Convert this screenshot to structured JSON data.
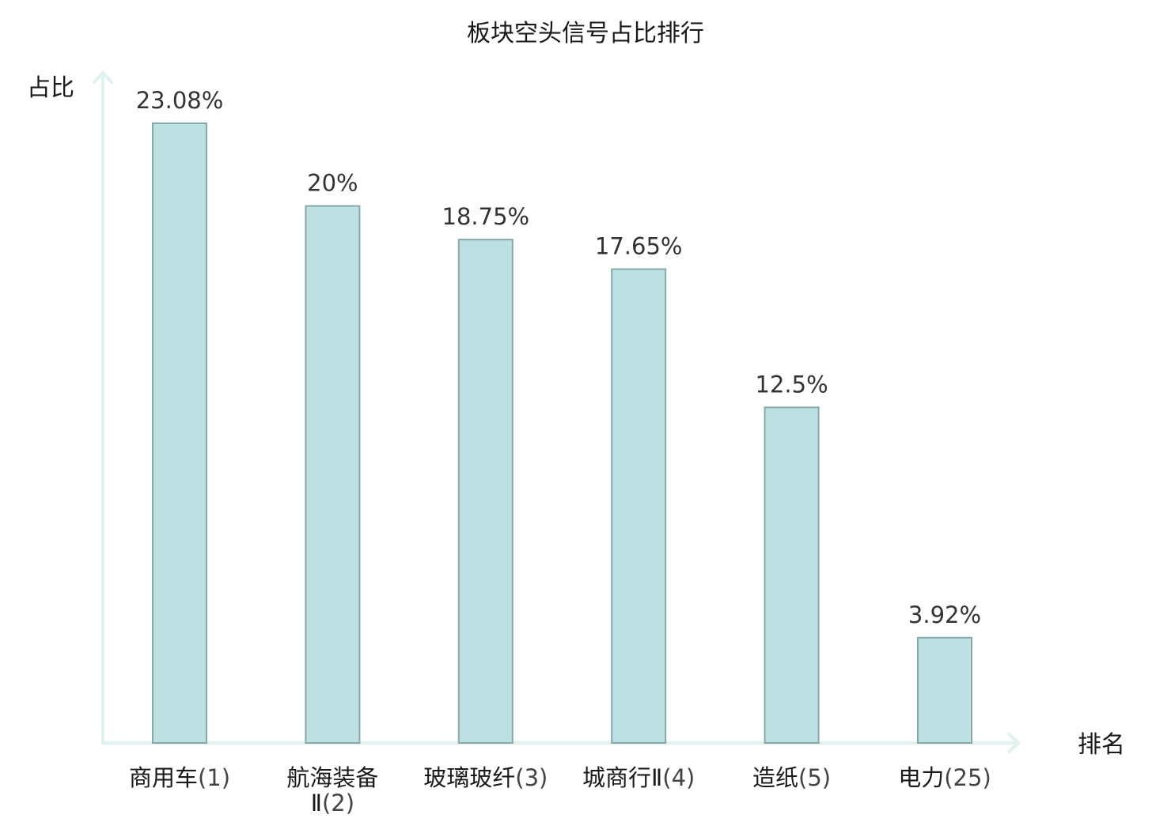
{
  "chart_data": {
    "type": "bar",
    "title": "板块空头信号占比排行",
    "ylabel": "占比",
    "xlabel": "排名",
    "ylim": [
      0,
      23.08
    ],
    "grid": false,
    "legend": "none",
    "categories": [
      {
        "name_lines": [
          "商用车"
        ],
        "rank": "(1)",
        "highlight": false
      },
      {
        "name_lines": [
          "航海装备",
          "Ⅱ"
        ],
        "rank": "(2)",
        "highlight": false
      },
      {
        "name_lines": [
          "玻璃玻纤"
        ],
        "rank": "(3)",
        "highlight": false
      },
      {
        "name_lines": [
          "城商行Ⅱ"
        ],
        "rank": "(4)",
        "highlight": false
      },
      {
        "name_lines": [
          "造纸"
        ],
        "rank": "(5)",
        "highlight": false
      },
      {
        "name_lines": [
          "电力"
        ],
        "rank": "(25)",
        "highlight": true
      }
    ],
    "values": [
      23.08,
      20,
      18.75,
      17.65,
      12.5,
      3.92
    ],
    "value_labels": [
      "23.08%",
      "20%",
      "18.75%",
      "17.65%",
      "12.5%",
      "3.92%"
    ]
  },
  "colors": {
    "bar_fill": "#bde0e2",
    "bar_stroke": "#86a9aa",
    "axis": "#dff2ef",
    "highlight": "#e0141e"
  }
}
